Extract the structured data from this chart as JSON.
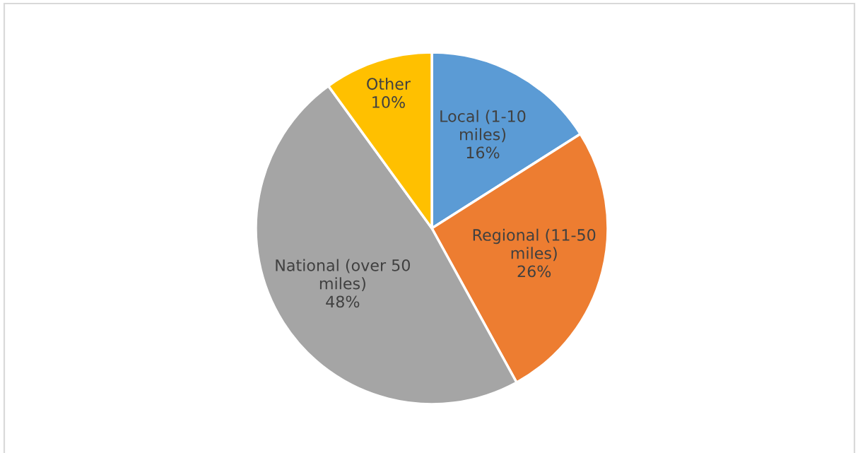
{
  "chart_data": {
    "type": "pie",
    "categories": [
      "Local (1-10 miles)",
      "Regional (11-50 miles)",
      "National (over 50 miles)",
      "Other"
    ],
    "values": [
      16,
      26,
      48,
      10
    ],
    "colors": [
      "#5b9bd5",
      "#ed7d31",
      "#a5a5a5",
      "#ffc000"
    ],
    "value_labels": [
      "16%",
      "26%",
      "48%",
      "10%"
    ],
    "legend": false
  }
}
